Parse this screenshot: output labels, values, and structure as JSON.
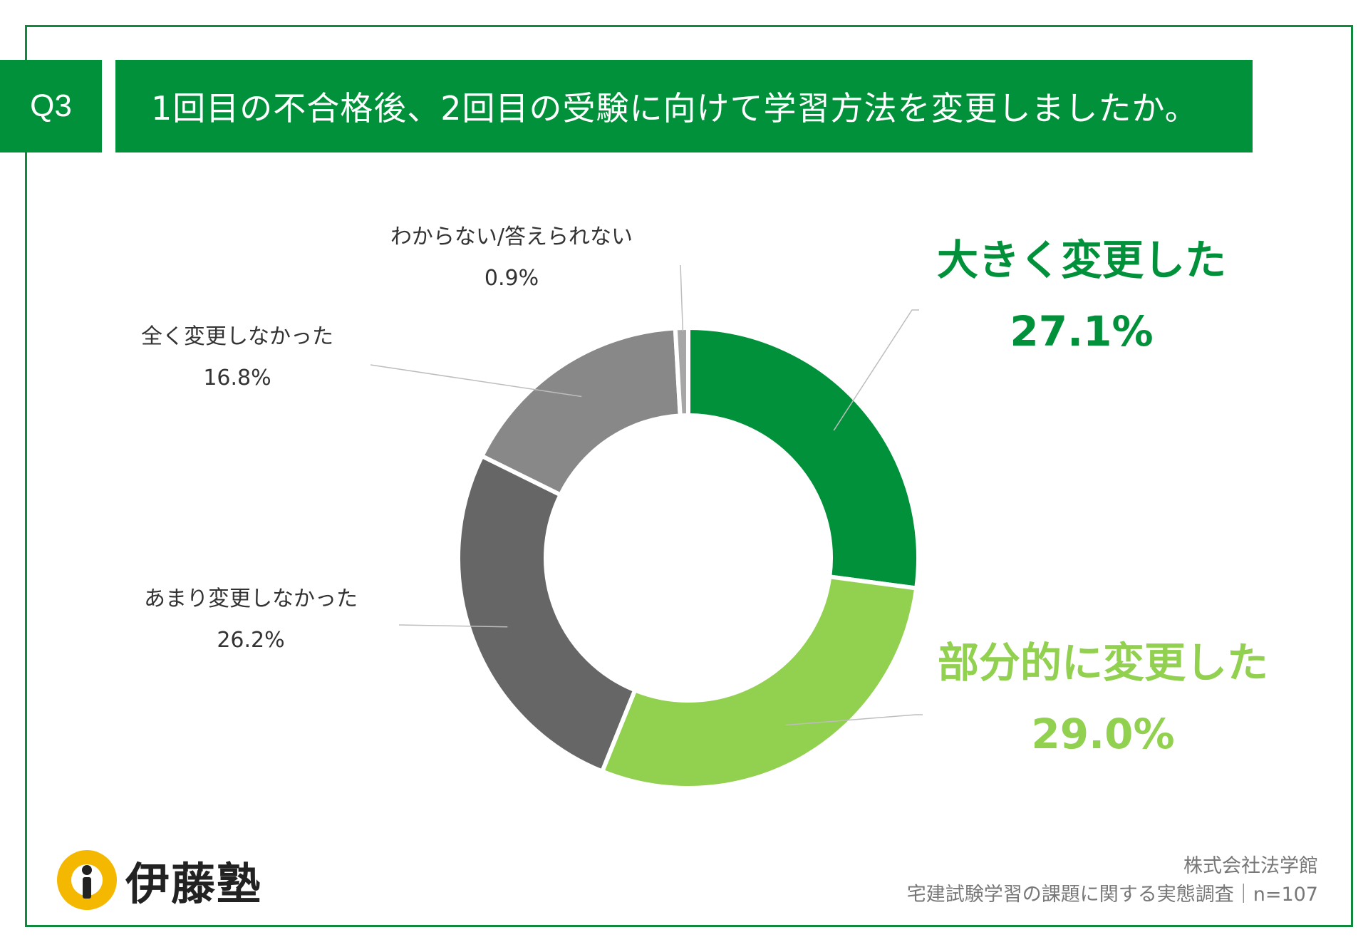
{
  "header": {
    "q_label": "Q3",
    "question": "1回目の不合格後、2回目の受験に向けて学習方法を変更しましたか。"
  },
  "chart_data": {
    "type": "pie",
    "donut": true,
    "title": "1回目の不合格後、2回目の受験に向けて学習方法を変更しましたか。",
    "slices": [
      {
        "label": "大きく変更した",
        "value": 27.1,
        "display": "27.1%",
        "color": "#00913a"
      },
      {
        "label": "部分的に変更した",
        "value": 29.0,
        "display": "29.0%",
        "color": "#92d050"
      },
      {
        "label": "あまり変更しなかった",
        "value": 26.2,
        "display": "26.2%",
        "color": "#666666"
      },
      {
        "label": "全く変更しなかった",
        "value": 16.8,
        "display": "16.8%",
        "color": "#888888"
      },
      {
        "label": "わからない/答えられない",
        "value": 0.9,
        "display": "0.9%",
        "color": "#a6a6a6"
      }
    ]
  },
  "logo": {
    "text": "伊藤塾",
    "accent_color": "#f5b800"
  },
  "footer": {
    "company": "株式会社法学館",
    "survey": "宅建試験学習の課題に関する実態調査｜n=107"
  }
}
